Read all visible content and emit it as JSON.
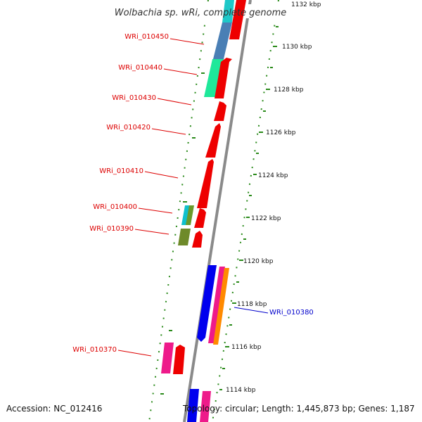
{
  "title": "Wolbachia sp. wRi, complete genome",
  "footer": {
    "accession": "Accession: NC_012416",
    "summary": "Topology: circular; Length: 1,445,873 bp; Genes: 1,187"
  },
  "colors": {
    "backbone": "#888888",
    "tick": "#2a8a1a",
    "label_red": "#dd0000",
    "label_blue": "#0000cc"
  },
  "ticks": [
    "1132 kbp",
    "1130 kbp",
    "1128 kbp",
    "1126 kbp",
    "1124 kbp",
    "1122 kbp",
    "1120 kbp",
    "1118 kbp",
    "1116 kbp",
    "1114 kbp"
  ],
  "gene_labels": [
    {
      "text": "WRi_010450",
      "color": "#dd0000"
    },
    {
      "text": "WRi_010440",
      "color": "#dd0000"
    },
    {
      "text": "WRi_010430",
      "color": "#dd0000"
    },
    {
      "text": "WRi_010420",
      "color": "#dd0000"
    },
    {
      "text": "WRi_010410",
      "color": "#dd0000"
    },
    {
      "text": "WRi_010400",
      "color": "#dd0000"
    },
    {
      "text": "WRi_010390",
      "color": "#dd0000"
    },
    {
      "text": "WRi_010380",
      "color": "#0000cc"
    },
    {
      "text": "WRi_010370",
      "color": "#dd0000"
    }
  ]
}
